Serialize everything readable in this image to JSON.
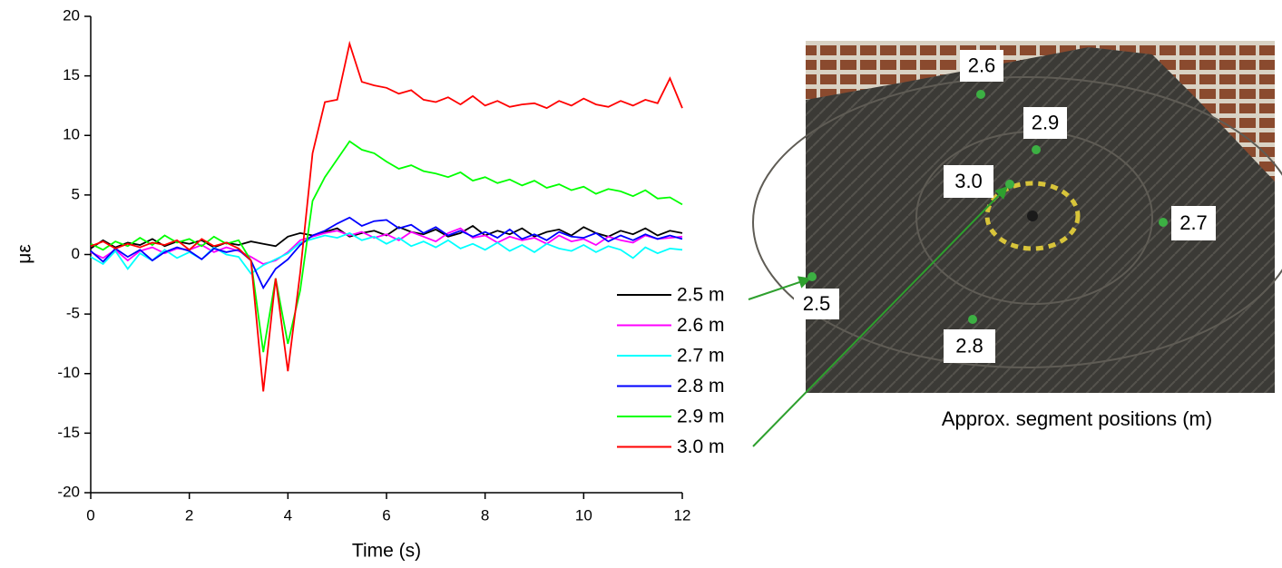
{
  "chart_data": {
    "type": "line",
    "xlabel": "Time (s)",
    "ylabel": "με",
    "x": [
      0,
      0.25,
      0.5,
      0.75,
      1,
      1.25,
      1.5,
      1.75,
      2,
      2.25,
      2.5,
      2.75,
      3,
      3.25,
      3.5,
      3.75,
      4,
      4.25,
      4.5,
      4.75,
      5,
      5.25,
      5.5,
      5.75,
      6,
      6.25,
      6.5,
      6.75,
      7,
      7.25,
      7.5,
      7.75,
      8,
      8.25,
      8.5,
      8.75,
      9,
      9.25,
      9.5,
      9.75,
      10,
      10.25,
      10.5,
      10.75,
      11,
      11.25,
      11.5,
      11.75,
      12
    ],
    "series": [
      {
        "name": "2.5 m",
        "color": "#000000",
        "values": [
          0.5,
          1.2,
          0.6,
          1.0,
          0.8,
          1.3,
          0.7,
          1.1,
          0.9,
          1.2,
          0.6,
          1.0,
          0.8,
          1.1,
          0.9,
          0.7,
          1.5,
          1.8,
          1.6,
          1.9,
          2.2,
          1.5,
          1.8,
          2.0,
          1.6,
          2.3,
          1.9,
          1.7,
          2.1,
          1.5,
          1.8,
          2.4,
          1.6,
          2.0,
          1.7,
          2.2,
          1.5,
          1.9,
          2.1,
          1.6,
          2.3,
          1.8,
          1.5,
          2.0,
          1.7,
          2.2,
          1.6,
          2.0,
          1.8
        ]
      },
      {
        "name": "2.6 m",
        "color": "#ff00ff",
        "values": [
          0.2,
          -0.3,
          0.4,
          -0.5,
          0.3,
          0.6,
          0.1,
          0.5,
          0.4,
          0.8,
          0.2,
          0.6,
          0.3,
          -0.2,
          -0.8,
          -0.5,
          0.2,
          1.2,
          1.5,
          1.8,
          2.0,
          1.6,
          1.9,
          1.4,
          1.7,
          1.2,
          1.9,
          1.5,
          1.1,
          1.8,
          2.2,
          1.4,
          1.6,
          1.0,
          1.5,
          1.2,
          1.4,
          0.9,
          1.6,
          1.1,
          1.3,
          0.8,
          1.5,
          1.2,
          1.0,
          1.6,
          1.3,
          1.4,
          1.5
        ]
      },
      {
        "name": "2.7 m",
        "color": "#00ffff",
        "values": [
          -0.2,
          -0.8,
          0.3,
          -1.2,
          0.1,
          -0.5,
          0.4,
          -0.3,
          0.2,
          -0.4,
          0.6,
          0.0,
          -0.2,
          -1.6,
          -0.9,
          -0.4,
          0.1,
          1.0,
          1.3,
          1.6,
          1.4,
          1.8,
          1.2,
          1.5,
          0.9,
          1.4,
          0.7,
          1.1,
          0.6,
          1.2,
          0.5,
          0.9,
          0.4,
          1.0,
          0.3,
          0.8,
          0.2,
          0.9,
          0.5,
          0.3,
          0.8,
          0.2,
          0.7,
          0.4,
          -0.3,
          0.6,
          0.1,
          0.5,
          0.4
        ]
      },
      {
        "name": "2.8 m",
        "color": "#0000ff",
        "values": [
          0.3,
          -0.6,
          0.5,
          -0.2,
          0.4,
          -0.5,
          0.2,
          0.6,
          0.3,
          -0.4,
          0.5,
          0.2,
          0.4,
          -0.5,
          -2.8,
          -1.2,
          -0.4,
          0.8,
          1.6,
          2.0,
          2.6,
          3.1,
          2.4,
          2.8,
          2.9,
          2.2,
          2.5,
          1.8,
          2.3,
          1.6,
          2.0,
          1.5,
          1.9,
          1.4,
          2.1,
          1.3,
          1.7,
          1.2,
          1.9,
          1.5,
          1.4,
          1.8,
          1.1,
          1.6,
          1.2,
          1.7,
          1.3,
          1.6,
          1.3
        ]
      },
      {
        "name": "2.9 m",
        "color": "#00ff00",
        "values": [
          0.9,
          0.4,
          1.1,
          0.7,
          1.4,
          0.8,
          1.6,
          1.0,
          1.3,
          0.7,
          1.5,
          0.9,
          1.2,
          -0.5,
          -8.2,
          -2.0,
          -7.5,
          -3.0,
          4.5,
          6.5,
          8.0,
          9.5,
          8.8,
          8.5,
          7.8,
          7.2,
          7.5,
          7.0,
          6.8,
          6.5,
          6.9,
          6.2,
          6.5,
          6.0,
          6.3,
          5.8,
          6.2,
          5.6,
          5.9,
          5.4,
          5.7,
          5.1,
          5.5,
          5.3,
          4.9,
          5.4,
          4.7,
          4.8,
          4.2
        ]
      },
      {
        "name": "3.0 m",
        "color": "#ff0000",
        "values": [
          0.7,
          1.1,
          0.5,
          0.9,
          0.6,
          1.0,
          0.8,
          1.2,
          0.4,
          1.3,
          0.7,
          1.0,
          0.5,
          -0.5,
          -11.5,
          -2.0,
          -9.8,
          -1.5,
          8.5,
          12.8,
          13.0,
          17.7,
          14.5,
          14.2,
          14.0,
          13.5,
          13.8,
          13.0,
          12.8,
          13.2,
          12.6,
          13.3,
          12.5,
          12.9,
          12.4,
          12.6,
          12.7,
          12.3,
          12.9,
          12.5,
          13.1,
          12.6,
          12.4,
          12.9,
          12.5,
          13.0,
          12.7,
          14.8,
          12.3
        ]
      }
    ],
    "xlim": [
      0,
      12
    ],
    "xticks": [
      0,
      2,
      4,
      6,
      8,
      10,
      12
    ],
    "ylim": [
      -20,
      20
    ],
    "yticks": [
      -20,
      -15,
      -10,
      -5,
      0,
      5,
      10,
      15,
      20
    ],
    "grid": false
  },
  "photo": {
    "caption": "Approx. segment positions (m)",
    "labels": [
      "2.6",
      "2.9",
      "3.0",
      "2.7",
      "2.5",
      "2.8"
    ]
  }
}
